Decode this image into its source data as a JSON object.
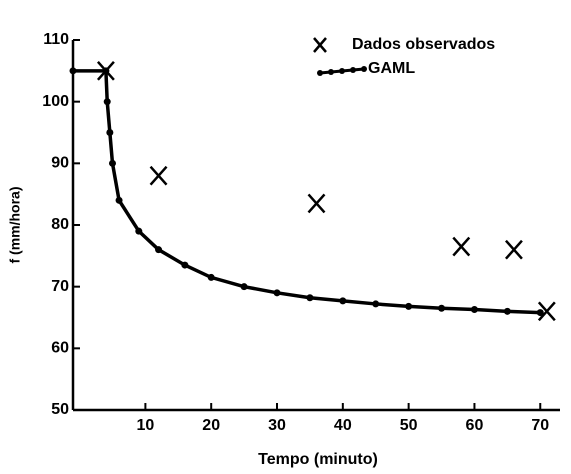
{
  "chart_data": {
    "type": "line",
    "xlabel": "Tempo (minuto)",
    "ylabel": "f (mm/hora)",
    "xlim": [
      -1,
      73
    ],
    "xticks": [
      10,
      20,
      30,
      40,
      50,
      60,
      70
    ],
    "ylim": [
      50,
      110
    ],
    "yticks": [
      50,
      60,
      70,
      80,
      90,
      100,
      110
    ],
    "legend": "upper right",
    "series": [
      {
        "name": "Dados observados",
        "type": "scatter",
        "marker": "x",
        "color": "#000000",
        "x": [
          4,
          12,
          36,
          58,
          66,
          71
        ],
        "values": [
          105,
          88,
          83.5,
          76.5,
          76,
          66
        ]
      },
      {
        "name": "GAML",
        "type": "line",
        "marker": "dot",
        "color": "#000000",
        "x": [
          -1,
          4,
          4.2,
          4.6,
          5,
          6,
          9,
          12,
          16,
          20,
          25,
          30,
          35,
          40,
          45,
          50,
          55,
          60,
          65,
          70
        ],
        "values": [
          105,
          105,
          100,
          95,
          90,
          84,
          79,
          76,
          73.5,
          71.5,
          70,
          69,
          68.2,
          67.7,
          67.2,
          66.8,
          66.5,
          66.3,
          66,
          65.8
        ]
      }
    ]
  }
}
